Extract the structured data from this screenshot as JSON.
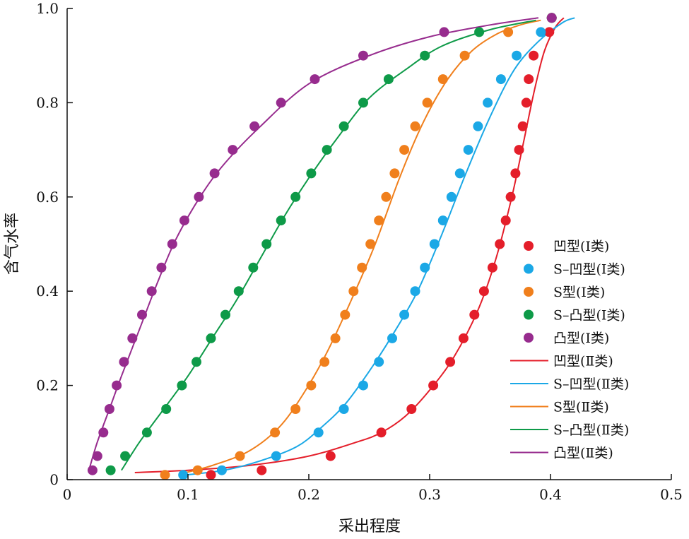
{
  "chart_data": {
    "type": "scatter",
    "title": "",
    "xlabel": "采出程度",
    "ylabel": "含气水率",
    "xlim": [
      0,
      0.5
    ],
    "ylim": [
      0,
      1.0
    ],
    "x_ticks": [
      "0",
      "0.1",
      "0.2",
      "0.3",
      "0.4",
      "0.5"
    ],
    "y_ticks": [
      "0",
      "0.2",
      "0.4",
      "0.6",
      "0.8",
      "1.0"
    ],
    "grid": false,
    "legend_position": "bottom-right",
    "series": [
      {
        "name": "凹型(Ⅰ类)",
        "kind": "points",
        "color": "#e41e2a",
        "points": [
          [
            0.119,
            0.01
          ],
          [
            0.161,
            0.02
          ],
          [
            0.218,
            0.05
          ],
          [
            0.26,
            0.1
          ],
          [
            0.285,
            0.15
          ],
          [
            0.303,
            0.2
          ],
          [
            0.317,
            0.25
          ],
          [
            0.328,
            0.3
          ],
          [
            0.337,
            0.35
          ],
          [
            0.345,
            0.4
          ],
          [
            0.352,
            0.45
          ],
          [
            0.358,
            0.5
          ],
          [
            0.363,
            0.55
          ],
          [
            0.367,
            0.6
          ],
          [
            0.371,
            0.65
          ],
          [
            0.374,
            0.7
          ],
          [
            0.377,
            0.75
          ],
          [
            0.38,
            0.8
          ],
          [
            0.382,
            0.85
          ],
          [
            0.386,
            0.9
          ],
          [
            0.399,
            0.95
          ],
          [
            0.401,
            0.98
          ]
        ]
      },
      {
        "name": "S–凹型(Ⅰ类)",
        "kind": "points",
        "color": "#1ba8e6",
        "points": [
          [
            0.096,
            0.01
          ],
          [
            0.128,
            0.02
          ],
          [
            0.173,
            0.05
          ],
          [
            0.208,
            0.1
          ],
          [
            0.229,
            0.15
          ],
          [
            0.245,
            0.2
          ],
          [
            0.258,
            0.25
          ],
          [
            0.269,
            0.3
          ],
          [
            0.279,
            0.35
          ],
          [
            0.288,
            0.4
          ],
          [
            0.296,
            0.45
          ],
          [
            0.304,
            0.5
          ],
          [
            0.311,
            0.55
          ],
          [
            0.318,
            0.6
          ],
          [
            0.325,
            0.65
          ],
          [
            0.332,
            0.7
          ],
          [
            0.34,
            0.75
          ],
          [
            0.348,
            0.8
          ],
          [
            0.359,
            0.85
          ],
          [
            0.372,
            0.9
          ],
          [
            0.392,
            0.95
          ],
          [
            0.401,
            0.98
          ]
        ]
      },
      {
        "name": "S型(Ⅰ类)",
        "kind": "points",
        "color": "#f07f1c",
        "points": [
          [
            0.081,
            0.01
          ],
          [
            0.108,
            0.02
          ],
          [
            0.143,
            0.05
          ],
          [
            0.172,
            0.1
          ],
          [
            0.189,
            0.15
          ],
          [
            0.202,
            0.2
          ],
          [
            0.213,
            0.25
          ],
          [
            0.222,
            0.3
          ],
          [
            0.23,
            0.35
          ],
          [
            0.237,
            0.4
          ],
          [
            0.244,
            0.45
          ],
          [
            0.251,
            0.5
          ],
          [
            0.258,
            0.55
          ],
          [
            0.264,
            0.6
          ],
          [
            0.271,
            0.65
          ],
          [
            0.279,
            0.7
          ],
          [
            0.288,
            0.75
          ],
          [
            0.298,
            0.8
          ],
          [
            0.311,
            0.85
          ],
          [
            0.329,
            0.9
          ],
          [
            0.365,
            0.95
          ],
          [
            0.401,
            0.98
          ]
        ]
      },
      {
        "name": "S–凸型(Ⅰ类)",
        "kind": "points",
        "color": "#0e9a48",
        "points": [
          [
            0.036,
            0.02
          ],
          [
            0.048,
            0.05
          ],
          [
            0.066,
            0.1
          ],
          [
            0.082,
            0.15
          ],
          [
            0.095,
            0.2
          ],
          [
            0.107,
            0.25
          ],
          [
            0.119,
            0.3
          ],
          [
            0.131,
            0.35
          ],
          [
            0.142,
            0.4
          ],
          [
            0.154,
            0.45
          ],
          [
            0.165,
            0.5
          ],
          [
            0.177,
            0.55
          ],
          [
            0.189,
            0.6
          ],
          [
            0.202,
            0.65
          ],
          [
            0.215,
            0.7
          ],
          [
            0.229,
            0.75
          ],
          [
            0.245,
            0.8
          ],
          [
            0.266,
            0.85
          ],
          [
            0.296,
            0.9
          ],
          [
            0.341,
            0.95
          ],
          [
            0.401,
            0.98
          ]
        ]
      },
      {
        "name": "凸型(Ⅰ类)",
        "kind": "points",
        "color": "#972c8e",
        "points": [
          [
            0.021,
            0.02
          ],
          [
            0.025,
            0.05
          ],
          [
            0.03,
            0.1
          ],
          [
            0.035,
            0.15
          ],
          [
            0.041,
            0.2
          ],
          [
            0.047,
            0.25
          ],
          [
            0.054,
            0.3
          ],
          [
            0.062,
            0.35
          ],
          [
            0.07,
            0.4
          ],
          [
            0.078,
            0.45
          ],
          [
            0.087,
            0.5
          ],
          [
            0.097,
            0.55
          ],
          [
            0.109,
            0.6
          ],
          [
            0.122,
            0.65
          ],
          [
            0.137,
            0.7
          ],
          [
            0.155,
            0.75
          ],
          [
            0.177,
            0.8
          ],
          [
            0.205,
            0.85
          ],
          [
            0.245,
            0.9
          ],
          [
            0.312,
            0.95
          ],
          [
            0.401,
            0.98
          ]
        ]
      },
      {
        "name": "凹型(Ⅱ类)",
        "kind": "line",
        "color": "#e41e2a",
        "points": [
          [
            0.056,
            0.015
          ],
          [
            0.1,
            0.02
          ],
          [
            0.15,
            0.03
          ],
          [
            0.2,
            0.05
          ],
          [
            0.24,
            0.08
          ],
          [
            0.26,
            0.1
          ],
          [
            0.28,
            0.135
          ],
          [
            0.3,
            0.19
          ],
          [
            0.32,
            0.26
          ],
          [
            0.34,
            0.36
          ],
          [
            0.355,
            0.47
          ],
          [
            0.368,
            0.6
          ],
          [
            0.378,
            0.72
          ],
          [
            0.387,
            0.83
          ],
          [
            0.395,
            0.91
          ],
          [
            0.404,
            0.96
          ],
          [
            0.411,
            0.98
          ]
        ]
      },
      {
        "name": "S–凹型(Ⅱ类)",
        "kind": "line",
        "color": "#1ba8e6",
        "points": [
          [
            0.098,
            0.01
          ],
          [
            0.13,
            0.02
          ],
          [
            0.16,
            0.04
          ],
          [
            0.19,
            0.07
          ],
          [
            0.21,
            0.11
          ],
          [
            0.23,
            0.16
          ],
          [
            0.25,
            0.23
          ],
          [
            0.27,
            0.31
          ],
          [
            0.29,
            0.4
          ],
          [
            0.31,
            0.52
          ],
          [
            0.33,
            0.65
          ],
          [
            0.35,
            0.77
          ],
          [
            0.37,
            0.87
          ],
          [
            0.39,
            0.93
          ],
          [
            0.41,
            0.97
          ],
          [
            0.42,
            0.98
          ]
        ]
      },
      {
        "name": "S型(Ⅱ类)",
        "kind": "line",
        "color": "#f07f1c",
        "points": [
          [
            0.098,
            0.015
          ],
          [
            0.12,
            0.03
          ],
          [
            0.15,
            0.06
          ],
          [
            0.175,
            0.11
          ],
          [
            0.195,
            0.18
          ],
          [
            0.215,
            0.27
          ],
          [
            0.235,
            0.38
          ],
          [
            0.255,
            0.5
          ],
          [
            0.275,
            0.64
          ],
          [
            0.295,
            0.76
          ],
          [
            0.315,
            0.85
          ],
          [
            0.335,
            0.91
          ],
          [
            0.355,
            0.945
          ],
          [
            0.375,
            0.965
          ],
          [
            0.392,
            0.975
          ]
        ]
      },
      {
        "name": "S–凸型(Ⅱ类)",
        "kind": "line",
        "color": "#0e9a48",
        "points": [
          [
            0.045,
            0.02
          ],
          [
            0.06,
            0.08
          ],
          [
            0.08,
            0.15
          ],
          [
            0.1,
            0.22
          ],
          [
            0.12,
            0.3
          ],
          [
            0.14,
            0.38
          ],
          [
            0.16,
            0.47
          ],
          [
            0.18,
            0.56
          ],
          [
            0.2,
            0.64
          ],
          [
            0.225,
            0.73
          ],
          [
            0.25,
            0.81
          ],
          [
            0.28,
            0.87
          ],
          [
            0.31,
            0.92
          ],
          [
            0.35,
            0.955
          ],
          [
            0.388,
            0.975
          ]
        ]
      },
      {
        "name": "凸型(Ⅱ类)",
        "kind": "line",
        "color": "#972c8e",
        "points": [
          [
            0.018,
            0.02
          ],
          [
            0.025,
            0.08
          ],
          [
            0.035,
            0.15
          ],
          [
            0.045,
            0.22
          ],
          [
            0.06,
            0.32
          ],
          [
            0.075,
            0.42
          ],
          [
            0.09,
            0.51
          ],
          [
            0.11,
            0.6
          ],
          [
            0.13,
            0.67
          ],
          [
            0.16,
            0.75
          ],
          [
            0.2,
            0.84
          ],
          [
            0.25,
            0.9
          ],
          [
            0.3,
            0.94
          ],
          [
            0.35,
            0.965
          ],
          [
            0.39,
            0.98
          ]
        ]
      }
    ]
  }
}
